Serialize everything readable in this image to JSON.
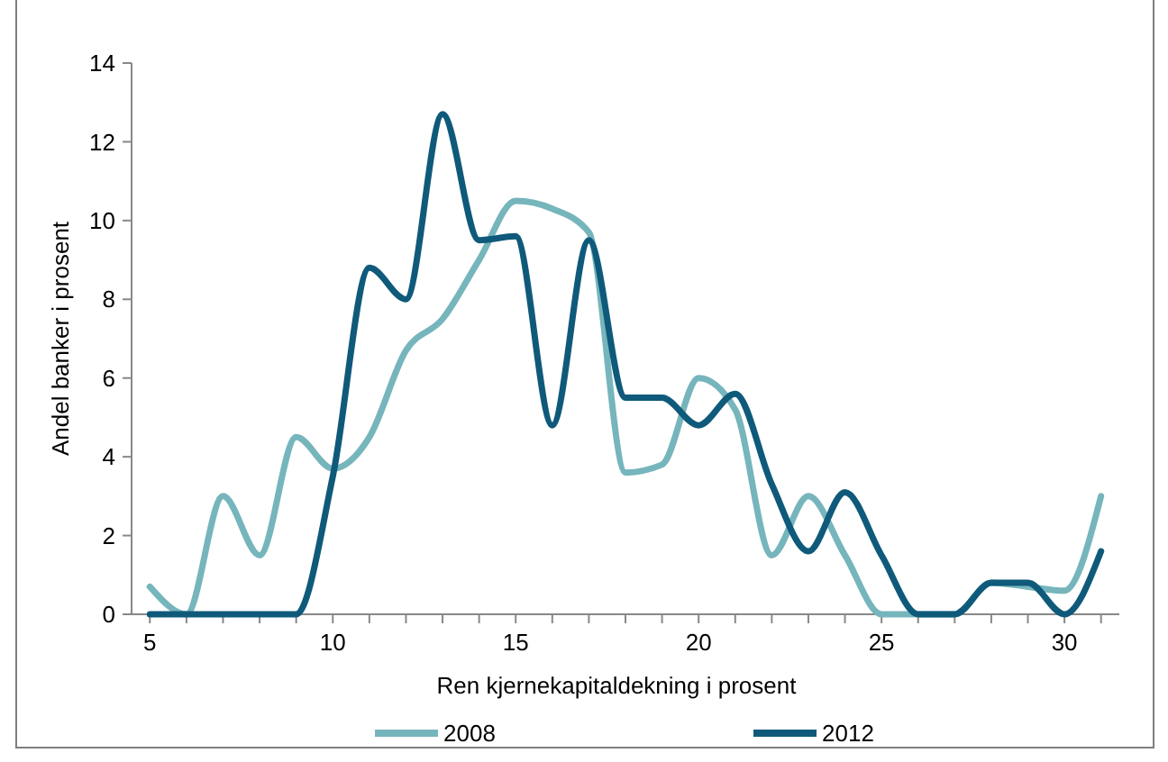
{
  "chart_data": {
    "type": "line",
    "xlabel": "Ren kjernekapitaldekning  i prosent",
    "ylabel": "Andel banker i prosent",
    "x": [
      5,
      6,
      7,
      8,
      9,
      10,
      11,
      12,
      13,
      14,
      15,
      16,
      17,
      18,
      19,
      20,
      21,
      22,
      23,
      24,
      25,
      26,
      27,
      28,
      29,
      30,
      31
    ],
    "series": [
      {
        "name": "2008",
        "color": "#76b5bc",
        "values": [
          0.7,
          0,
          3,
          1.5,
          4.5,
          3.7,
          4.5,
          6.7,
          7.5,
          9,
          10.5,
          10.3,
          9.7,
          3.6,
          3.8,
          6,
          5.2,
          1.5,
          3,
          1.5,
          0,
          0,
          0,
          0.8,
          0.7,
          0.6,
          3
        ]
      },
      {
        "name": "2012",
        "color": "#0f5a7a",
        "values": [
          0,
          0,
          0,
          0,
          0,
          3.5,
          8.8,
          8,
          12.7,
          9.5,
          9.6,
          4.8,
          9.5,
          5.5,
          5.5,
          4.8,
          5.6,
          3.3,
          1.6,
          3.1,
          1.5,
          0,
          0,
          0.8,
          0.8,
          0,
          1.6
        ]
      }
    ],
    "xlim": [
      4.5,
      31.5
    ],
    "xticks": [
      5,
      {
        "value": 6,
        "label": null
      },
      {
        "value": 7,
        "label": null
      },
      {
        "value": 8,
        "label": null
      },
      {
        "value": 9,
        "label": null
      },
      10,
      {
        "value": 11,
        "label": null
      },
      {
        "value": 12,
        "label": null
      },
      {
        "value": 13,
        "label": null
      },
      {
        "value": 14,
        "label": null
      },
      15,
      {
        "value": 16,
        "label": null
      },
      {
        "value": 17,
        "label": null
      },
      {
        "value": 18,
        "label": null
      },
      {
        "value": 19,
        "label": null
      },
      20,
      {
        "value": 21,
        "label": null
      },
      {
        "value": 22,
        "label": null
      },
      {
        "value": 23,
        "label": null
      },
      {
        "value": 24,
        "label": null
      },
      25,
      {
        "value": 26,
        "label": null
      },
      {
        "value": 27,
        "label": null
      },
      {
        "value": 28,
        "label": null
      },
      {
        "value": 29,
        "label": null
      },
      30,
      {
        "value": 31,
        "label": null
      }
    ],
    "ylim": [
      0,
      14
    ],
    "yticks": [
      0,
      2,
      4,
      6,
      8,
      10,
      12,
      14
    ],
    "grid": false,
    "legend": "bottom",
    "marker": "none",
    "line_style": "solid"
  }
}
